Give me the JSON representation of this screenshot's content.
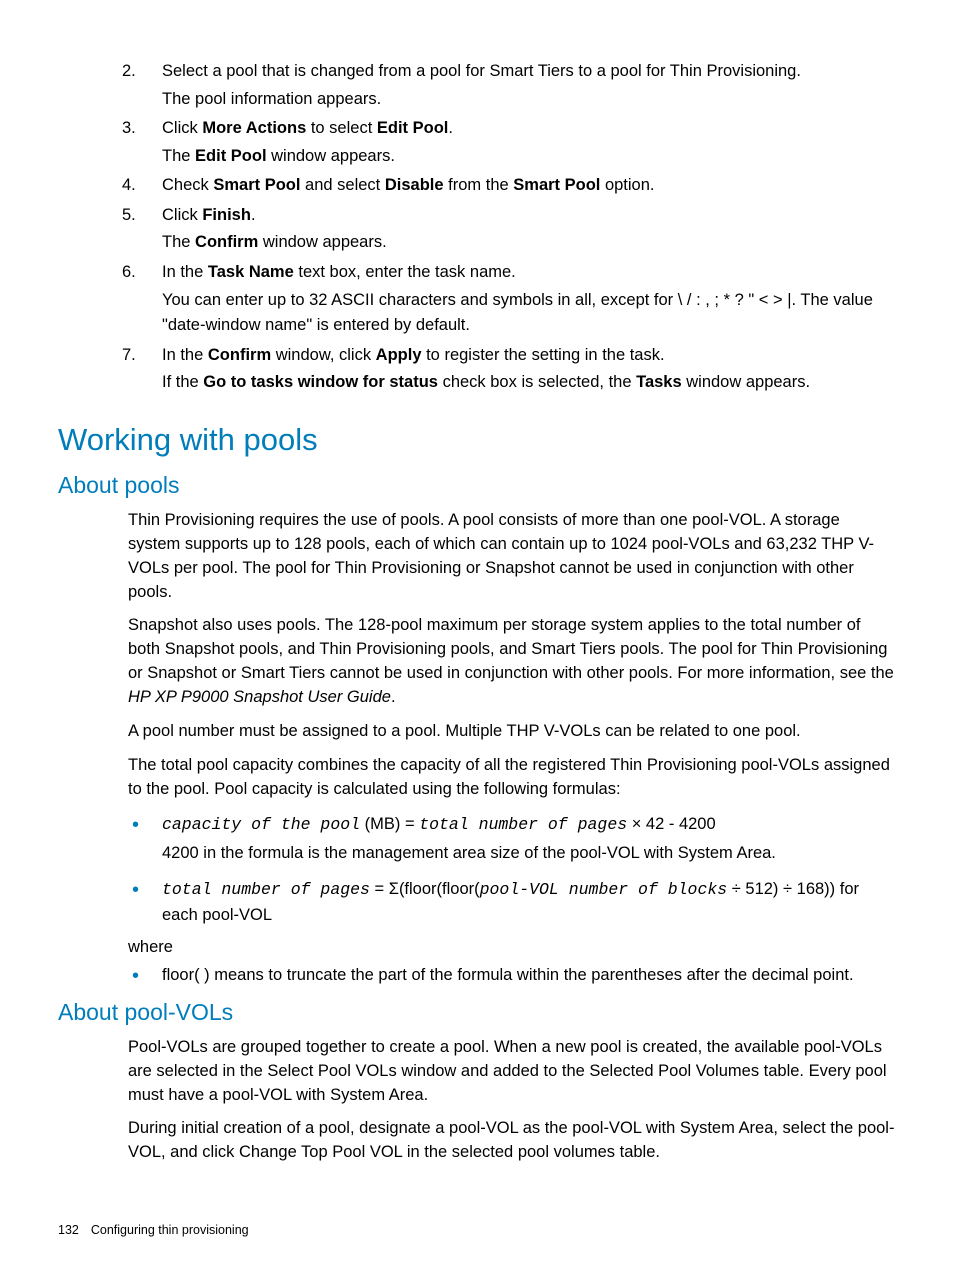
{
  "colors": {
    "accent": "#007dba",
    "text": "#000000",
    "background": "#ffffff"
  },
  "steps": [
    {
      "n": "2.",
      "line1_parts": [
        {
          "t": "Select a pool that is changed from a pool for Smart Tiers to a pool for Thin Provisioning."
        }
      ],
      "line2_parts": [
        {
          "t": "The pool information appears."
        }
      ]
    },
    {
      "n": "3.",
      "line1_parts": [
        {
          "t": "Click "
        },
        {
          "t": "More Actions",
          "b": true
        },
        {
          "t": " to select "
        },
        {
          "t": "Edit Pool",
          "b": true
        },
        {
          "t": "."
        }
      ],
      "line2_parts": [
        {
          "t": "The "
        },
        {
          "t": "Edit Pool",
          "b": true
        },
        {
          "t": " window appears."
        }
      ]
    },
    {
      "n": "4.",
      "line1_parts": [
        {
          "t": "Check "
        },
        {
          "t": "Smart Pool",
          "b": true
        },
        {
          "t": " and select "
        },
        {
          "t": "Disable",
          "b": true
        },
        {
          "t": " from the "
        },
        {
          "t": "Smart Pool",
          "b": true
        },
        {
          "t": " option."
        }
      ]
    },
    {
      "n": "5.",
      "line1_parts": [
        {
          "t": "Click "
        },
        {
          "t": "Finish",
          "b": true
        },
        {
          "t": "."
        }
      ],
      "line2_parts": [
        {
          "t": "The "
        },
        {
          "t": "Confirm",
          "b": true
        },
        {
          "t": " window appears."
        }
      ]
    },
    {
      "n": "6.",
      "line1_parts": [
        {
          "t": "In the "
        },
        {
          "t": "Task Name",
          "b": true
        },
        {
          "t": " text box, enter the task name."
        }
      ],
      "line2_parts": [
        {
          "t": "You can enter up to 32 ASCII characters and symbols in all, except for \\ / : , ; * ? \" < > |. The value \"date-window name\" is entered by default."
        }
      ]
    },
    {
      "n": "7.",
      "line1_parts": [
        {
          "t": "In the "
        },
        {
          "t": "Confirm",
          "b": true
        },
        {
          "t": " window, click "
        },
        {
          "t": "Apply",
          "b": true
        },
        {
          "t": " to register the setting in the task."
        }
      ],
      "line2_parts": [
        {
          "t": "If the "
        },
        {
          "t": "Go to tasks window for status",
          "b": true
        },
        {
          "t": " check box is selected, the "
        },
        {
          "t": "Tasks",
          "b": true
        },
        {
          "t": " window appears."
        }
      ]
    }
  ],
  "h1": "Working with pools",
  "h2a": "About pools",
  "p1": "Thin Provisioning requires the use of pools. A pool consists of more than one pool-VOL. A storage system supports up to 128 pools, each of which can contain up to 1024 pool-VOLs and 63,232 THP V-VOLs per pool. The pool for Thin Provisioning or Snapshot cannot be used in conjunction with other pools.",
  "p2_pre": "Snapshot also uses pools. The 128-pool maximum per storage system applies to the total number of both Snapshot pools, and Thin Provisioning pools, and Smart Tiers pools. The pool for Thin Provisioning or Snapshot or Smart Tiers cannot be used in conjunction with other pools. For more information, see the ",
  "p2_it": "HP XP P9000 Snapshot User Guide",
  "p2_post": ".",
  "p3": "A pool number must be assigned to a pool. Multiple THP V-VOLs can be related to one pool.",
  "p4": "The total pool capacity combines the capacity of all the registered Thin Provisioning pool-VOLs assigned to the pool. Pool capacity is calculated using the following formulas:",
  "formula1": {
    "a": "capacity of the pool",
    "b": " (MB) = ",
    "c": "total number of pages",
    "d": " × 42 - 4200"
  },
  "formula1_sub": "4200 in the formula is the management area size of the pool-VOL with System Area.",
  "formula2": {
    "a": "total number of pages",
    "b": " = Σ(floor(floor(",
    "c": "pool-VOL number of blocks",
    "d": " ÷ 512) ÷ 168)) for each pool-VOL"
  },
  "where": "where",
  "formula3": "floor( ) means to truncate the part of the formula within the parentheses after the decimal point.",
  "h2b": "About pool-VOLs",
  "p5": "Pool-VOLs are grouped together to create a pool. When a new pool is created, the available pool-VOLs are selected in the Select Pool VOLs window and added to the Selected Pool Volumes table. Every pool must have a pool-VOL with System Area.",
  "p6": "During initial creation of a pool, designate a pool-VOL as the pool-VOL with System Area, select the pool-VOL, and click Change Top Pool VOL in the selected pool volumes table.",
  "footer": {
    "page": "132",
    "title": "Configuring thin provisioning"
  }
}
